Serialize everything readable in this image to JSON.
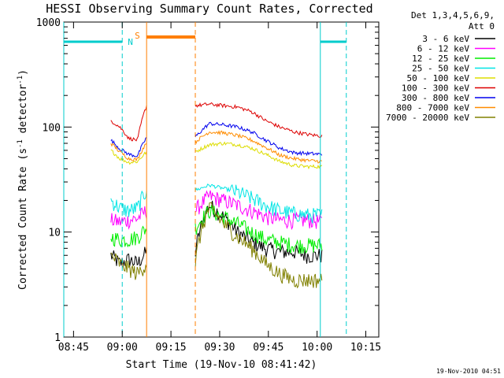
{
  "chart_data": {
    "type": "line",
    "title": "HESSI Observing Summary Count Rates, Corrected",
    "xlabel": "Start Time (19-Nov-10 08:41:42)",
    "ylabel_main": "Corrected Count Rate (s",
    "ylabel_sup1": "-1",
    "ylabel_mid": " detector",
    "ylabel_sup2": "-1",
    "ylabel_end": ")",
    "yscale": "log",
    "ylim": [
      1,
      1000
    ],
    "xlim_minutes": [
      36,
      93
    ],
    "x_ticks": [
      {
        "m": 39,
        "label": "08:45"
      },
      {
        "m": 54,
        "label": "09:00"
      },
      {
        "m": 69,
        "label": "09:15"
      },
      {
        "m": 84,
        "label": "09:30"
      },
      {
        "m": 99,
        "label": "09:45"
      },
      {
        "m": 114,
        "label": "10:00"
      },
      {
        "m": 129,
        "label": "10:15"
      }
    ],
    "y_ticks": [
      {
        "v": 1,
        "label": "1"
      },
      {
        "v": 10,
        "label": "10"
      },
      {
        "v": 100,
        "label": "100"
      },
      {
        "v": 1000,
        "label": "1000"
      }
    ],
    "legend_title": [
      "Det 1,3,4,5,6,9,",
      "Att 0"
    ],
    "series": [
      {
        "name": "3 - 6 keV",
        "color": "#000000",
        "levels": [
          6,
          5,
          5.5,
          5,
          6.5,
          18,
          14,
          10,
          8,
          7,
          6.5,
          6.5,
          6,
          6
        ]
      },
      {
        "name": "6 - 12 keV",
        "color": "#ff00ff",
        "levels": [
          13,
          12.5,
          13,
          13.5,
          16,
          22,
          20,
          18,
          16,
          14,
          13,
          13,
          13,
          12.5
        ]
      },
      {
        "name": "12 - 25 keV",
        "color": "#00ee00",
        "levels": [
          9,
          8.5,
          8.5,
          9,
          11,
          16,
          14,
          12,
          10,
          8.5,
          8,
          7.5,
          7.5,
          7.5
        ]
      },
      {
        "name": "25 - 50 keV",
        "color": "#00e5e5",
        "levels": [
          20,
          17,
          16,
          17,
          25,
          28,
          26,
          24,
          21,
          18,
          16,
          15,
          14.5,
          14.5
        ]
      },
      {
        "name": "50 - 100 keV",
        "color": "#dddd00",
        "levels": [
          60,
          50,
          46,
          47,
          58,
          68,
          70,
          68,
          63,
          55,
          47,
          43,
          42,
          42
        ]
      },
      {
        "name": "100 - 300 keV",
        "color": "#dd0000",
        "levels": [
          115,
          100,
          78,
          75,
          160,
          165,
          160,
          155,
          140,
          115,
          100,
          90,
          85,
          82
        ]
      },
      {
        "name": "300 - 800 keV",
        "color": "#0000ee",
        "levels": [
          75,
          62,
          55,
          53,
          80,
          108,
          105,
          100,
          90,
          75,
          63,
          57,
          56,
          55
        ]
      },
      {
        "name": "800 - 7000 keV",
        "color": "#ff8c00",
        "levels": [
          70,
          58,
          50,
          49,
          72,
          90,
          88,
          83,
          75,
          64,
          54,
          50,
          48,
          47
        ]
      },
      {
        "name": "7000 - 20000 keV",
        "color": "#808000",
        "levels": [
          6,
          5,
          4.5,
          4,
          5,
          17,
          12,
          9,
          7,
          5,
          4,
          3.5,
          3.5,
          3.5
        ]
      }
    ],
    "segments_minutes": [
      [
        50.5,
        61.5
      ],
      [
        76.5,
        115.5
      ]
    ],
    "markers": {
      "N_label": "N",
      "S_label": "S",
      "night": [
        {
          "from": 36,
          "to": 54,
          "level": 650
        },
        {
          "from": 115,
          "to": 123,
          "level": 650
        }
      ],
      "saa": {
        "from": 61.5,
        "to": 76.5,
        "level": 720
      }
    }
  },
  "footer_date": "19-Nov-2010 04:51"
}
